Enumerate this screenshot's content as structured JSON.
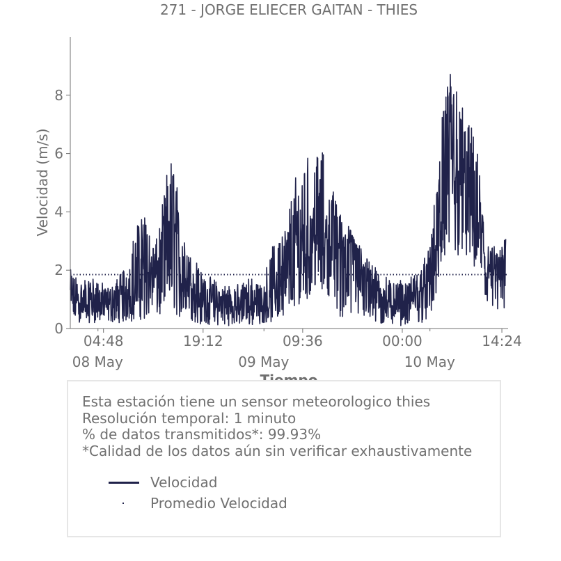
{
  "chart_data": {
    "type": "line",
    "title": "271 - JORGE ELIECER GAITAN - THIES",
    "xlabel": "Tiempo",
    "ylabel": "Velocidad (m/s)",
    "ylim": [
      0,
      10
    ],
    "y_ticks": [
      "0",
      "2",
      "4",
      "6",
      "8"
    ],
    "x_ticks_minor": [
      "04:48",
      "19:12",
      "09:36",
      "00:00",
      "14:24"
    ],
    "x_ticks_major": [
      "08 May",
      "09 May",
      "10 May"
    ],
    "x_hours_range": [
      0,
      63.3
    ],
    "x_minor_tick_hours": [
      4.8,
      19.2,
      33.6,
      48.0,
      62.4
    ],
    "x_major_tick_hours": [
      4.0,
      28.0,
      52.0
    ],
    "grid": false,
    "series": [
      {
        "name": "Velocidad",
        "color": "#20224a",
        "style": "solid",
        "x_hours": [
          0,
          1,
          2,
          3,
          4,
          5,
          6,
          7,
          8,
          9,
          10,
          11,
          12,
          13,
          14,
          15,
          16,
          17,
          18,
          19,
          20,
          21,
          22,
          23,
          24,
          25,
          26,
          27,
          28,
          29,
          30,
          31,
          32,
          33,
          34,
          35,
          36,
          37,
          38,
          39,
          40,
          41,
          42,
          43,
          44,
          45,
          46,
          47,
          48,
          49,
          50,
          51,
          52,
          53,
          54,
          55,
          56,
          57,
          58,
          59,
          60,
          61,
          62,
          63
        ],
        "y_mid": [
          1.0,
          0.9,
          0.8,
          0.9,
          0.9,
          0.8,
          0.9,
          1.0,
          1.2,
          1.3,
          1.8,
          1.9,
          1.8,
          1.9,
          2.5,
          2.9,
          1.9,
          1.6,
          1.2,
          1.0,
          0.9,
          0.8,
          0.8,
          0.8,
          0.7,
          0.8,
          0.9,
          0.8,
          0.9,
          1.2,
          1.4,
          1.6,
          1.9,
          2.2,
          2.6,
          2.9,
          3.3,
          3.0,
          2.8,
          2.9,
          2.8,
          2.9,
          2.0,
          1.5,
          1.2,
          1.0,
          0.9,
          0.9,
          0.9,
          0.9,
          1.1,
          1.3,
          1.6,
          2.3,
          4.2,
          4.8,
          4.6,
          4.8,
          4.4,
          3.8,
          2.2,
          1.8,
          1.6,
          1.9
        ],
        "y_low": [
          0.2,
          0.2,
          0.2,
          0.2,
          0.2,
          0.2,
          0.2,
          0.2,
          0.2,
          0.2,
          0.3,
          0.3,
          0.3,
          0.3,
          0.4,
          0.5,
          0.3,
          0.2,
          0.2,
          0.1,
          0.1,
          0.1,
          0.1,
          0.1,
          0.1,
          0.1,
          0.1,
          0.1,
          0.2,
          0.2,
          0.3,
          0.5,
          0.6,
          0.8,
          1.0,
          1.1,
          1.4,
          1.2,
          1.0,
          0.3,
          0.3,
          0.3,
          0.3,
          0.2,
          0.1,
          0.1,
          0.1,
          0.1,
          0.1,
          0.1,
          0.2,
          0.2,
          0.3,
          1.2,
          2.2,
          2.5,
          2.3,
          2.3,
          2.1,
          1.4,
          0.5,
          0.4,
          0.4,
          0.6
        ],
        "y_high": [
          2.3,
          1.8,
          1.8,
          1.8,
          1.7,
          1.5,
          1.6,
          1.8,
          2.3,
          3.0,
          4.2,
          4.1,
          3.2,
          3.6,
          5.7,
          6.0,
          3.8,
          2.9,
          2.7,
          1.9,
          1.8,
          1.7,
          1.6,
          1.6,
          1.5,
          1.6,
          1.8,
          1.7,
          1.7,
          2.8,
          3.1,
          4.0,
          4.6,
          5.9,
          6.0,
          5.9,
          6.9,
          5.4,
          4.8,
          4.1,
          3.6,
          3.2,
          2.8,
          2.6,
          2.4,
          2.0,
          1.7,
          1.7,
          1.7,
          1.7,
          2.1,
          2.3,
          2.9,
          5.1,
          9.0,
          8.9,
          8.6,
          7.6,
          6.9,
          5.9,
          3.3,
          2.8,
          2.9,
          3.5
        ]
      },
      {
        "name": "Promedio Velocidad",
        "color": "#20224a",
        "style": "dotted",
        "value": 1.85
      }
    ]
  },
  "info": {
    "line1": "Esta estación tiene un sensor meteorologico thies",
    "line2": "Resolución temporal: 1 minuto",
    "line3": "% de datos transmitidos*: 99.93%",
    "line4": "*Calidad de los datos aún sin verificar exhaustivamente"
  },
  "legend": {
    "series_label": "Velocidad",
    "average_label": "Promedio Velocidad"
  }
}
